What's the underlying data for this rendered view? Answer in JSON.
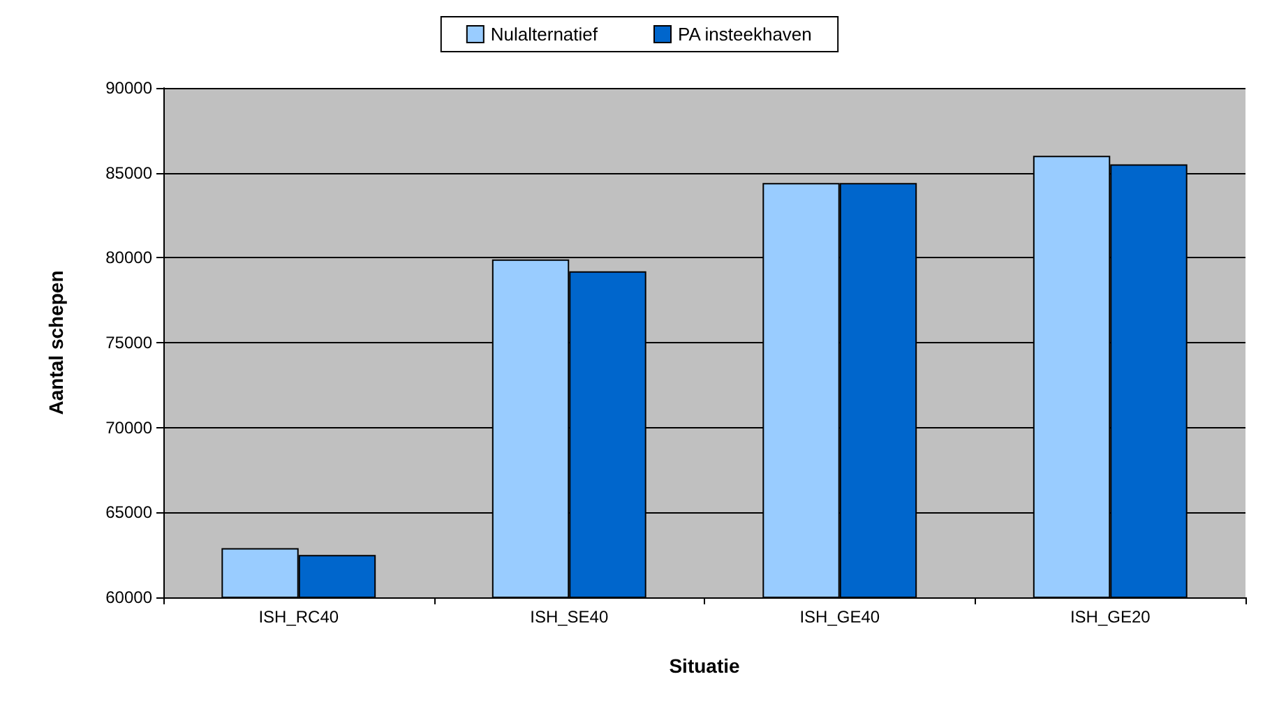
{
  "chart_data": {
    "type": "bar",
    "xlabel": "Situatie",
    "ylabel": "Aantal schepen",
    "categories": [
      "ISH_RC40",
      "ISH_SE40",
      "ISH_GE40",
      "ISH_GE20"
    ],
    "series": [
      {
        "name": "Nulalternatief",
        "color": "#99ccff",
        "values": [
          62900,
          79900,
          84400,
          86000
        ]
      },
      {
        "name": "PA insteekhaven",
        "color": "#0066cc",
        "values": [
          62500,
          79200,
          84400,
          85500
        ]
      }
    ],
    "ylim": [
      60000,
      90000
    ],
    "yticks": [
      60000,
      65000,
      70000,
      75000,
      80000,
      85000,
      90000
    ],
    "grid": "y",
    "legend": "top"
  }
}
